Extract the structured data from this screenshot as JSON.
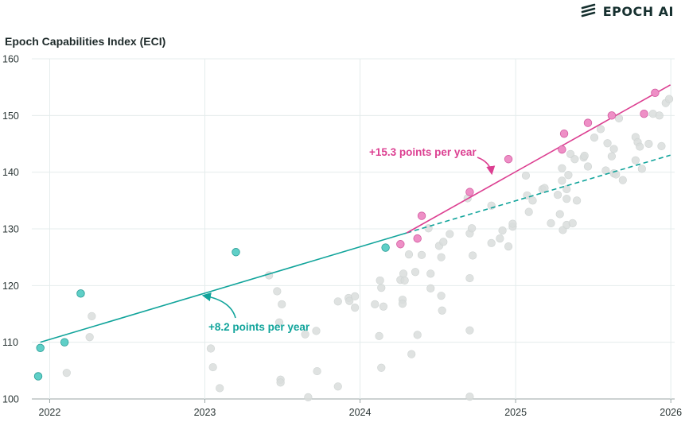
{
  "brand": {
    "name": "EPOCH AI",
    "icon": "epoch-logo-icon"
  },
  "chart_data": {
    "type": "scatter",
    "title": "",
    "ylabel": "Epoch Capabilities Index (ECI)",
    "xlabel": "",
    "xlim": [
      "2021-11-20",
      "2026-01-10"
    ],
    "ylim": [
      100,
      160
    ],
    "x_ticks": [
      "2022",
      "2023",
      "2024",
      "2025",
      "2026"
    ],
    "y_ticks": [
      100,
      110,
      120,
      130,
      140,
      150,
      160
    ],
    "grid": true,
    "colors": {
      "background_points": "#d9dddc",
      "early_frontier": "#5fcfc7",
      "recent_frontier": "#ee8fc6",
      "early_trend": "#11a49b",
      "recent_trend": "#dc3f91"
    },
    "series": [
      {
        "name": "",
        "points": [
          [
            "2022-02-10",
            104.6
          ],
          [
            "2022-04-05",
            110.9
          ],
          [
            "2022-04-10",
            114.6
          ],
          [
            "2023-01-15",
            108.9
          ],
          [
            "2023-01-20",
            105.6
          ],
          [
            "2023-02-05",
            101.9
          ],
          [
            "2023-06-01",
            121.8
          ],
          [
            "2023-06-20",
            119.0
          ],
          [
            "2023-06-25",
            113.5
          ],
          [
            "2023-06-28",
            103.4
          ],
          [
            "2023-06-28",
            102.9
          ],
          [
            "2023-07-01",
            116.7
          ],
          [
            "2023-08-25",
            111.4
          ],
          [
            "2023-09-01",
            100.3
          ],
          [
            "2023-09-20",
            112.0
          ],
          [
            "2023-09-22",
            104.9
          ],
          [
            "2023-11-10",
            117.2
          ],
          [
            "2023-11-10",
            102.2
          ],
          [
            "2023-12-05",
            117.8
          ],
          [
            "2023-12-07",
            117.3
          ],
          [
            "2023-12-20",
            116.1
          ],
          [
            "2023-12-20",
            118.1
          ],
          [
            "2024-02-05",
            116.7
          ],
          [
            "2024-02-15",
            111.1
          ],
          [
            "2024-02-17",
            120.9
          ],
          [
            "2024-02-20",
            119.6
          ],
          [
            "2024-02-20",
            105.5
          ],
          [
            "2024-02-25",
            116.3
          ],
          [
            "2024-04-05",
            121.0
          ],
          [
            "2024-04-10",
            117.5
          ],
          [
            "2024-04-10",
            116.8
          ],
          [
            "2024-04-12",
            122.1
          ],
          [
            "2024-04-15",
            120.9
          ],
          [
            "2024-04-25",
            125.5
          ],
          [
            "2024-05-01",
            107.9
          ],
          [
            "2024-05-10",
            122.4
          ],
          [
            "2024-05-15",
            111.3
          ],
          [
            "2024-05-25",
            125.4
          ],
          [
            "2024-06-10",
            130.1
          ],
          [
            "2024-06-15",
            122.1
          ],
          [
            "2024-06-15",
            119.5
          ],
          [
            "2024-07-05",
            127.0
          ],
          [
            "2024-07-10",
            125.0
          ],
          [
            "2024-07-10",
            118.2
          ],
          [
            "2024-07-12",
            115.6
          ],
          [
            "2024-07-15",
            127.7
          ],
          [
            "2024-07-30",
            129.1
          ],
          [
            "2024-09-10",
            135.4
          ],
          [
            "2024-09-15",
            129.2
          ],
          [
            "2024-09-15",
            121.3
          ],
          [
            "2024-09-15",
            112.1
          ],
          [
            "2024-09-15",
            100.4
          ],
          [
            "2024-09-20",
            130.1
          ],
          [
            "2024-09-22",
            125.3
          ],
          [
            "2024-11-05",
            134.1
          ],
          [
            "2024-11-05",
            127.5
          ],
          [
            "2024-11-25",
            128.3
          ],
          [
            "2024-12-01",
            129.7
          ],
          [
            "2024-12-15",
            126.9
          ],
          [
            "2024-12-25",
            130.4
          ],
          [
            "2024-12-25",
            130.9
          ],
          [
            "2025-01-25",
            139.4
          ],
          [
            "2025-01-28",
            135.9
          ],
          [
            "2025-02-01",
            133.0
          ],
          [
            "2025-02-10",
            135.0
          ],
          [
            "2025-03-05",
            137.0
          ],
          [
            "2025-03-10",
            137.2
          ],
          [
            "2025-03-25",
            131.0
          ],
          [
            "2025-04-10",
            136.0
          ],
          [
            "2025-04-15",
            132.6
          ],
          [
            "2025-04-20",
            140.7
          ],
          [
            "2025-04-20",
            138.5
          ],
          [
            "2025-04-22",
            129.8
          ],
          [
            "2025-05-01",
            137.0
          ],
          [
            "2025-05-01",
            135.3
          ],
          [
            "2025-05-01",
            130.7
          ],
          [
            "2025-05-05",
            139.5
          ],
          [
            "2025-05-10",
            143.2
          ],
          [
            "2025-05-15",
            131.0
          ],
          [
            "2025-05-20",
            142.3
          ],
          [
            "2025-05-25",
            135.0
          ],
          [
            "2025-06-10",
            142.6
          ],
          [
            "2025-06-12",
            142.9
          ],
          [
            "2025-06-20",
            141.0
          ],
          [
            "2025-07-05",
            146.1
          ],
          [
            "2025-07-20",
            147.6
          ],
          [
            "2025-08-01",
            140.3
          ],
          [
            "2025-08-05",
            145.1
          ],
          [
            "2025-08-15",
            142.8
          ],
          [
            "2025-08-20",
            144.1
          ],
          [
            "2025-08-20",
            139.8
          ],
          [
            "2025-08-25",
            139.6
          ],
          [
            "2025-09-01",
            149.5
          ],
          [
            "2025-09-10",
            138.6
          ],
          [
            "2025-10-10",
            146.2
          ],
          [
            "2025-10-10",
            142.1
          ],
          [
            "2025-10-15",
            145.3
          ],
          [
            "2025-10-20",
            144.5
          ],
          [
            "2025-10-25",
            140.6
          ],
          [
            "2025-11-10",
            145.0
          ],
          [
            "2025-11-20",
            150.3
          ],
          [
            "2025-12-05",
            150.0
          ],
          [
            "2025-12-10",
            144.6
          ],
          [
            "2025-12-20",
            152.2
          ],
          [
            "2025-12-28",
            152.9
          ]
        ]
      },
      {
        "name": "",
        "points": [
          [
            "2021-12-05",
            104.0
          ],
          [
            "2021-12-10",
            109.0
          ],
          [
            "2022-02-05",
            110.0
          ],
          [
            "2022-03-15",
            118.6
          ],
          [
            "2023-03-15",
            125.9
          ],
          [
            "2024-03-01",
            126.7
          ]
        ]
      },
      {
        "name": "",
        "points": [
          [
            "2024-04-05",
            127.3
          ],
          [
            "2024-05-15",
            128.3
          ],
          [
            "2024-05-25",
            132.3
          ],
          [
            "2024-09-15",
            136.5
          ],
          [
            "2024-12-15",
            142.3
          ],
          [
            "2025-04-20",
            144.0
          ],
          [
            "2025-04-25",
            146.8
          ],
          [
            "2025-06-20",
            148.7
          ],
          [
            "2025-08-15",
            150.0
          ],
          [
            "2025-10-30",
            150.3
          ],
          [
            "2025-11-25",
            154.0
          ]
        ]
      }
    ],
    "trend_lines": [
      {
        "label": "+8.2 points per year",
        "rate": 8.2,
        "from": [
          "2021-12-10",
          110.0
        ],
        "to": [
          "2024-04-20",
          129.3
        ],
        "style": "solid"
      },
      {
        "label": "",
        "rate": 8.2,
        "from": [
          "2024-04-20",
          129.3
        ],
        "to": [
          "2025-12-31",
          143.0
        ],
        "style": "dashed"
      },
      {
        "label": "+15.3 points per year",
        "rate": 15.3,
        "from": [
          "2024-04-20",
          129.3
        ],
        "to": [
          "2025-12-31",
          155.4
        ],
        "style": "solid"
      }
    ],
    "annotations": [
      {
        "text": "+8.2 points per year",
        "series": "early"
      },
      {
        "text": "+15.3 points per year",
        "series": "recent"
      }
    ]
  }
}
